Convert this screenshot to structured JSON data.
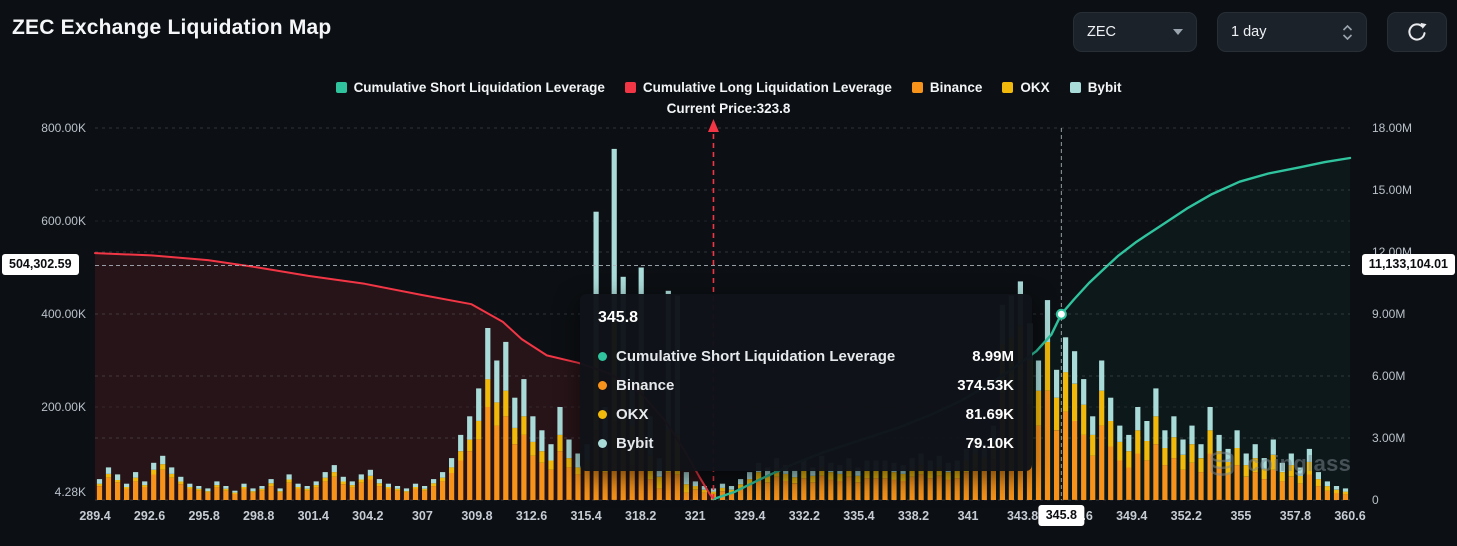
{
  "header": {
    "title": "ZEC Exchange Liquidation Map"
  },
  "controls": {
    "symbol": "ZEC",
    "interval": "1 day"
  },
  "legend": {
    "items": [
      {
        "label": "Cumulative Short Liquidation Leverage",
        "color": "#2fc39e"
      },
      {
        "label": "Cumulative Long Liquidation Leverage",
        "color": "#f23645"
      },
      {
        "label": "Binance",
        "color": "#f7931a"
      },
      {
        "label": "OKX",
        "color": "#f0b90b"
      },
      {
        "label": "Bybit",
        "color": "#a9dbd8"
      }
    ],
    "current_price_label": "Current Price:323.8"
  },
  "tooltip": {
    "title": "345.8",
    "rows": [
      {
        "label": "Cumulative Short Liquidation Leverage",
        "value": "8.99M",
        "color": "#2fc39e"
      },
      {
        "label": "Binance",
        "value": "374.53K",
        "color": "#f7931a"
      },
      {
        "label": "OKX",
        "value": "81.69K",
        "color": "#f0b90b"
      },
      {
        "label": "Bybit",
        "value": "79.10K",
        "color": "#a9dbd8"
      }
    ]
  },
  "watermark": "coinglass",
  "chart_data": {
    "type": "bar",
    "subtype": "liquidation-map (stacked bars + cumulative lines)",
    "x_labels": [
      "289.4",
      "292.6",
      "295.8",
      "298.8",
      "301.4",
      "304.2",
      "307",
      "309.8",
      "312.6",
      "315.4",
      "318.2",
      "321",
      "329.4",
      "332.2",
      "335.4",
      "338.2",
      "341",
      "343.8",
      "346.6",
      "349.4",
      "352.2",
      "355",
      "357.8",
      "360.6"
    ],
    "left_axis": {
      "unit": "K",
      "max": 800,
      "ticks": [
        {
          "label": "800.00K",
          "v": 800
        },
        {
          "label": "600.00K",
          "v": 600
        },
        {
          "label": "400.00K",
          "v": 400
        },
        {
          "label": "200.00K",
          "v": 200
        },
        {
          "label": "4.28K",
          "v": 4.28
        }
      ]
    },
    "right_axis": {
      "unit": "M",
      "max": 18,
      "ticks": [
        {
          "label": "18.00M",
          "v": 18
        },
        {
          "label": "15.00M",
          "v": 15
        },
        {
          "label": "12.00M",
          "v": 12
        },
        {
          "label": "9.00M",
          "v": 9
        },
        {
          "label": "6.00M",
          "v": 6
        },
        {
          "label": "3.00M",
          "v": 3
        },
        {
          "label": "0",
          "v": 0
        }
      ]
    },
    "current_price": {
      "price": 323.8,
      "x_frac": 0.4928,
      "color": "#f23645"
    },
    "crosshair": {
      "price": 345.8,
      "x_frac": 0.77,
      "x_label": "345.8",
      "left_badge": "504,302.59",
      "left_valueK": 504.30259,
      "right_badge": "11,133,104.01",
      "dot_valueM": 8.99
    },
    "bars": {
      "series": [
        "Binance",
        "OKX",
        "Bybit"
      ],
      "colors": [
        "#f7931a",
        "#f0b90b",
        "#a9dbd8"
      ],
      "unit": "K",
      "values": [
        [
          30,
          5,
          10
        ],
        [
          48,
          8,
          14
        ],
        [
          38,
          5,
          12
        ],
        [
          24,
          4,
          7
        ],
        [
          40,
          8,
          12
        ],
        [
          28,
          4,
          8
        ],
        [
          55,
          10,
          15
        ],
        [
          65,
          12,
          18
        ],
        [
          48,
          8,
          14
        ],
        [
          34,
          6,
          10
        ],
        [
          24,
          4,
          7
        ],
        [
          20,
          4,
          6
        ],
        [
          16,
          3,
          6
        ],
        [
          27,
          5,
          8
        ],
        [
          20,
          4,
          6
        ],
        [
          13,
          3,
          4
        ],
        [
          24,
          4,
          7
        ],
        [
          16,
          3,
          6
        ],
        [
          20,
          4,
          6
        ],
        [
          30,
          6,
          9
        ],
        [
          16,
          3,
          6
        ],
        [
          37,
          7,
          11
        ],
        [
          24,
          4,
          7
        ],
        [
          20,
          4,
          6
        ],
        [
          27,
          5,
          8
        ],
        [
          40,
          8,
          12
        ],
        [
          50,
          10,
          15
        ],
        [
          34,
          6,
          10
        ],
        [
          27,
          5,
          8
        ],
        [
          37,
          7,
          11
        ],
        [
          44,
          8,
          13
        ],
        [
          30,
          6,
          9
        ],
        [
          24,
          4,
          7
        ],
        [
          20,
          4,
          6
        ],
        [
          16,
          3,
          6
        ],
        [
          24,
          4,
          7
        ],
        [
          20,
          4,
          6
        ],
        [
          30,
          6,
          9
        ],
        [
          40,
          8,
          12
        ],
        [
          58,
          12,
          20
        ],
        [
          85,
          20,
          35
        ],
        [
          105,
          25,
          50
        ],
        [
          130,
          40,
          70
        ],
        [
          200,
          60,
          110
        ],
        [
          160,
          50,
          90
        ],
        [
          180,
          55,
          105
        ],
        [
          120,
          35,
          65
        ],
        [
          140,
          40,
          80
        ],
        [
          95,
          30,
          55
        ],
        [
          80,
          25,
          45
        ],
        [
          65,
          20,
          35
        ],
        [
          105,
          35,
          60
        ],
        [
          70,
          20,
          40
        ],
        [
          55,
          15,
          30
        ],
        [
          65,
          20,
          35
        ],
        [
          150,
          170,
          300
        ],
        [
          60,
          50,
          90
        ],
        [
          170,
          215,
          370
        ],
        [
          110,
          130,
          240
        ],
        [
          75,
          85,
          140
        ],
        [
          110,
          140,
          250
        ],
        [
          45,
          50,
          85
        ],
        [
          25,
          25,
          40
        ],
        [
          60,
          90,
          300
        ],
        [
          55,
          85,
          300
        ],
        [
          16,
          18,
          26
        ],
        [
          22,
          8,
          10
        ],
        [
          16,
          6,
          8
        ],
        [
          13,
          5,
          7
        ],
        [
          19,
          7,
          9
        ],
        [
          16,
          6,
          8
        ],
        [
          25,
          9,
          11
        ],
        [
          33,
          12,
          15
        ],
        [
          44,
          16,
          20
        ],
        [
          38,
          14,
          18
        ],
        [
          50,
          18,
          22
        ],
        [
          41,
          15,
          19
        ],
        [
          36,
          13,
          16
        ],
        [
          47,
          17,
          21
        ],
        [
          38,
          14,
          18
        ],
        [
          52,
          19,
          24
        ],
        [
          44,
          16,
          20
        ],
        [
          41,
          15,
          19
        ],
        [
          50,
          18,
          22
        ],
        [
          38,
          14,
          18
        ],
        [
          47,
          17,
          21
        ],
        [
          47,
          17,
          21
        ],
        [
          47,
          17,
          21
        ],
        [
          44,
          16,
          20
        ],
        [
          41,
          15,
          19
        ],
        [
          50,
          18,
          22
        ],
        [
          55,
          20,
          25
        ],
        [
          47,
          17,
          21
        ],
        [
          52,
          19,
          24
        ],
        [
          44,
          16,
          20
        ],
        [
          47,
          17,
          21
        ],
        [
          60,
          25,
          25
        ],
        [
          72,
          28,
          30
        ],
        [
          66,
          26,
          28
        ],
        [
          88,
          36,
          36
        ],
        [
          230,
          105,
          85
        ],
        [
          240,
          110,
          90
        ],
        [
          255,
          120,
          95
        ],
        [
          205,
          95,
          80
        ],
        [
          160,
          75,
          65
        ],
        [
          235,
          105,
          90
        ],
        [
          150,
          70,
          60
        ],
        [
          190,
          85,
          75
        ],
        [
          170,
          80,
          70
        ],
        [
          140,
          65,
          55
        ],
        [
          95,
          45,
          40
        ],
        [
          160,
          75,
          65
        ],
        [
          115,
          55,
          50
        ],
        [
          85,
          40,
          35
        ],
        [
          70,
          35,
          35
        ],
        [
          100,
          50,
          50
        ],
        [
          85,
          42,
          43
        ],
        [
          120,
          60,
          60
        ],
        [
          75,
          37,
          38
        ],
        [
          90,
          45,
          45
        ],
        [
          65,
          32,
          33
        ],
        [
          80,
          40,
          40
        ],
        [
          60,
          30,
          30
        ],
        [
          100,
          50,
          50
        ],
        [
          70,
          35,
          35
        ],
        [
          55,
          27,
          28
        ],
        [
          75,
          37,
          38
        ],
        [
          50,
          25,
          25
        ],
        [
          60,
          30,
          30
        ],
        [
          45,
          22,
          23
        ],
        [
          65,
          32,
          33
        ],
        [
          40,
          20,
          20
        ],
        [
          50,
          25,
          25
        ],
        [
          35,
          17,
          18
        ],
        [
          55,
          27,
          28
        ],
        [
          30,
          15,
          15
        ],
        [
          20,
          10,
          10
        ],
        [
          15,
          7,
          8
        ],
        [
          12,
          6,
          7
        ]
      ]
    },
    "long_line": {
      "name": "Cumulative Long Liquidation Leverage",
      "color": "#f23645",
      "axis": "left",
      "unit": "K",
      "points": [
        [
          0,
          531
        ],
        [
          0.045,
          526
        ],
        [
          0.09,
          516
        ],
        [
          0.13,
          500
        ],
        [
          0.17,
          482
        ],
        [
          0.215,
          465
        ],
        [
          0.26,
          441
        ],
        [
          0.3,
          421
        ],
        [
          0.325,
          383
        ],
        [
          0.34,
          346
        ],
        [
          0.36,
          311
        ],
        [
          0.385,
          295
        ],
        [
          0.41,
          272
        ],
        [
          0.435,
          230
        ],
        [
          0.455,
          168
        ],
        [
          0.47,
          105
        ],
        [
          0.482,
          48
        ],
        [
          0.49,
          12
        ],
        [
          0.493,
          2
        ]
      ]
    },
    "short_line": {
      "name": "Cumulative Short Liquidation Leverage",
      "color": "#2fc39e",
      "axis": "right",
      "unit": "M",
      "points": [
        [
          0.493,
          0.05
        ],
        [
          0.51,
          0.4
        ],
        [
          0.53,
          1.0
        ],
        [
          0.555,
          1.7
        ],
        [
          0.58,
          2.3
        ],
        [
          0.61,
          2.9
        ],
        [
          0.64,
          3.5
        ],
        [
          0.665,
          4.1
        ],
        [
          0.69,
          4.8
        ],
        [
          0.71,
          5.5
        ],
        [
          0.73,
          6.3
        ],
        [
          0.75,
          7.2
        ],
        [
          0.762,
          8.0
        ],
        [
          0.77,
          8.99
        ],
        [
          0.78,
          9.7
        ],
        [
          0.792,
          10.5
        ],
        [
          0.803,
          11.13
        ],
        [
          0.815,
          11.8
        ],
        [
          0.83,
          12.5
        ],
        [
          0.85,
          13.3
        ],
        [
          0.87,
          14.1
        ],
        [
          0.89,
          14.8
        ],
        [
          0.912,
          15.4
        ],
        [
          0.935,
          15.8
        ],
        [
          0.96,
          16.1
        ],
        [
          0.98,
          16.35
        ],
        [
          1.0,
          16.55
        ]
      ]
    }
  }
}
